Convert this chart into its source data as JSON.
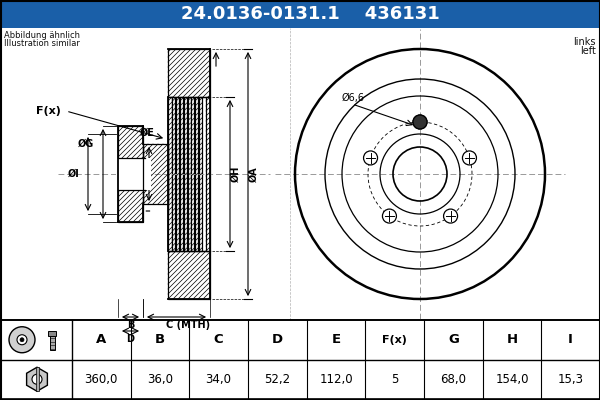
{
  "title_part": "24.0136-0131.1",
  "title_code": "436131",
  "title_bg": "#1a5fa8",
  "title_fg": "#ffffff",
  "subtitle_line1": "Abbildung ähnlich",
  "subtitle_line2": "Illustration similar",
  "side_text_line1": "links",
  "side_text_line2": "left",
  "diameter_label": "Ø6,6",
  "table_headers": [
    "A",
    "B",
    "C",
    "D",
    "E",
    "F(x)",
    "G",
    "H",
    "I"
  ],
  "table_values": [
    "360,0",
    "36,0",
    "34,0",
    "52,2",
    "112,0",
    "5",
    "68,0",
    "154,0",
    "15,3"
  ],
  "bg_color": "#ffffff",
  "drawing_color": "#000000",
  "crosshair_color": "#aaaaaa",
  "c_mth_label": "C (MTH)"
}
